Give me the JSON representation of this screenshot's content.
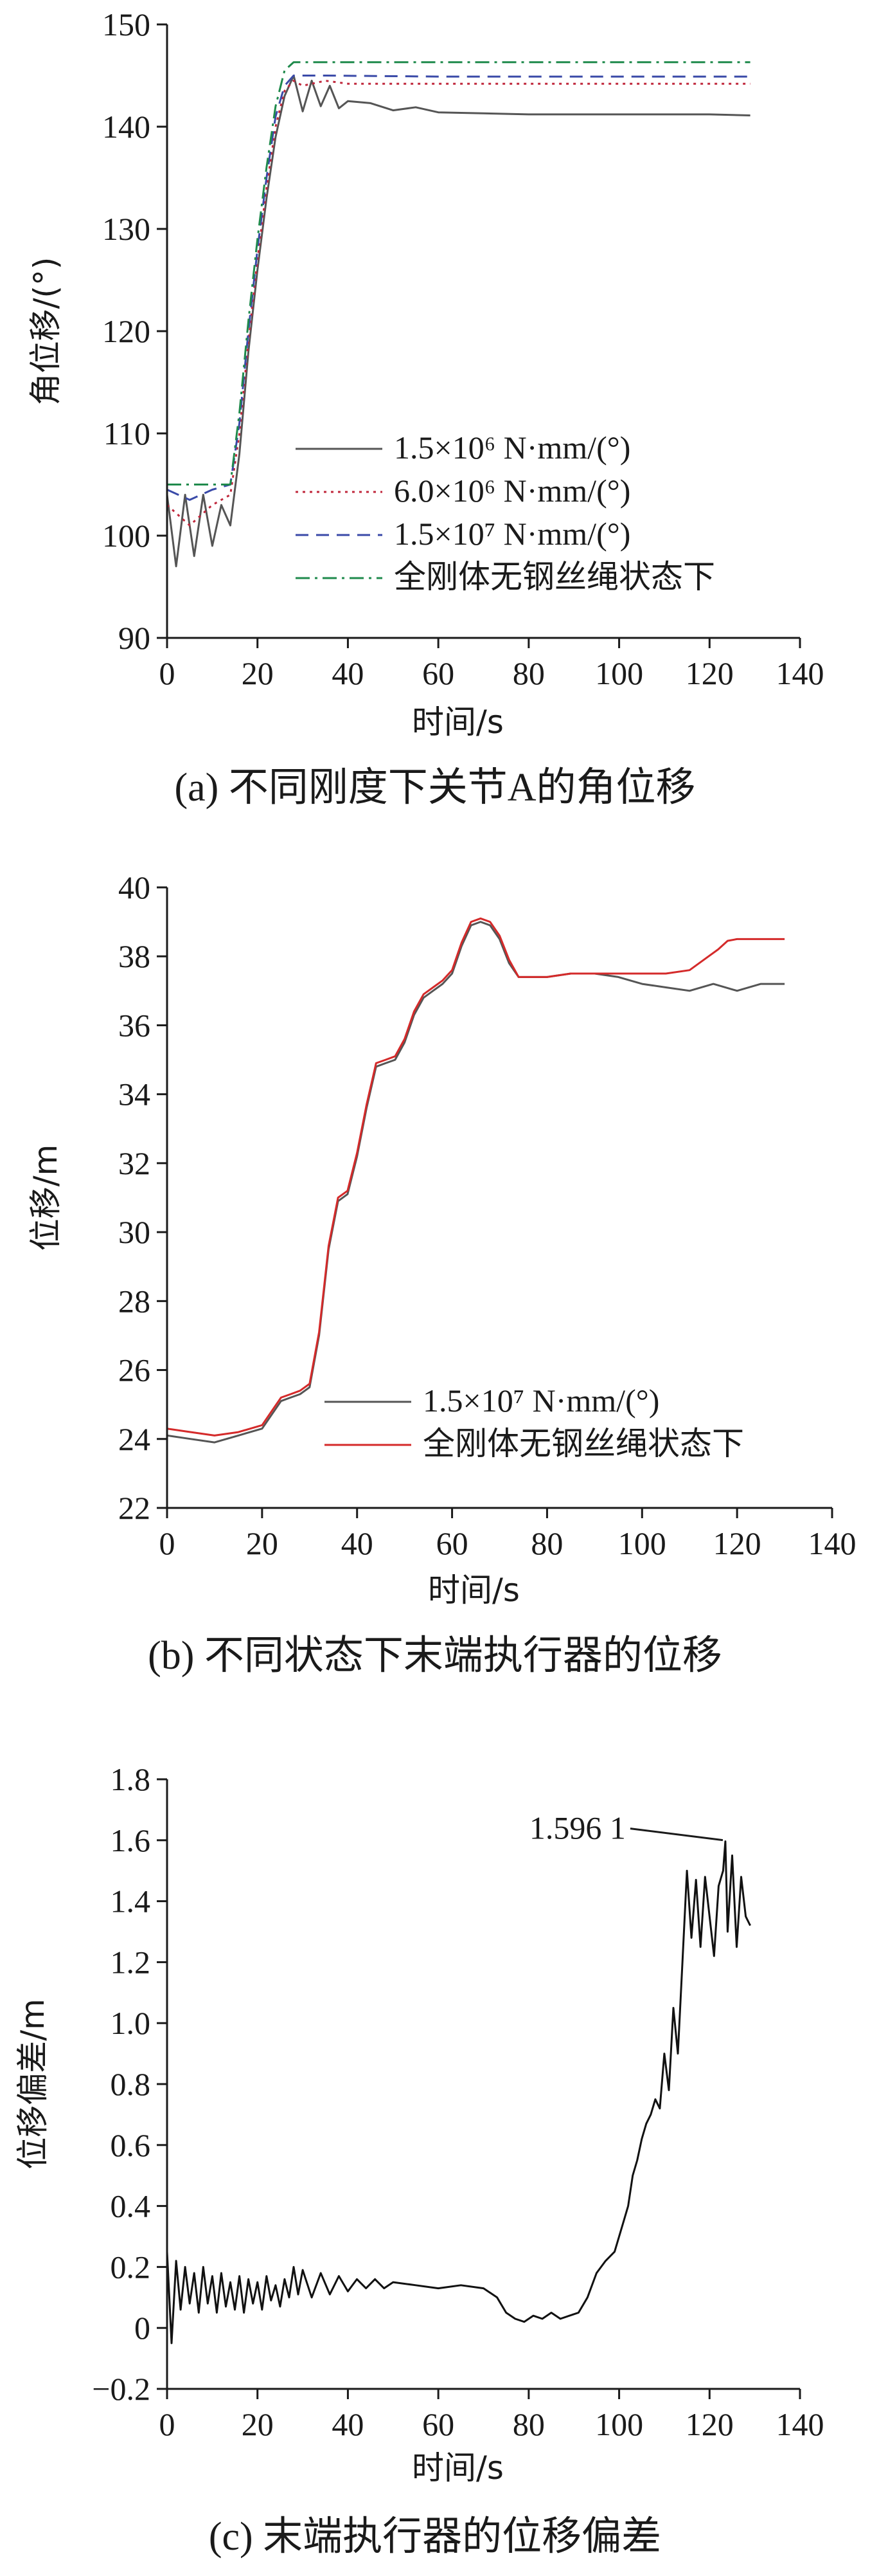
{
  "chart_data": [
    {
      "type": "line",
      "caption": "(a)  不同刚度下关节A的角位移",
      "xlabel": "时间/s",
      "ylabel": "角位移/(°)",
      "xlim": [
        0,
        140
      ],
      "ylim": [
        90,
        150
      ],
      "xticks": [
        "0",
        "20",
        "40",
        "60",
        "80",
        "100",
        "120",
        "140"
      ],
      "yticks": [
        "90",
        "100",
        "110",
        "120",
        "130",
        "140",
        "150"
      ],
      "legend_position": "lower-right",
      "series": [
        {
          "name": "1.5×10⁶ N·mm/(°)",
          "color": "#555555",
          "style": "solid",
          "x": [
            0,
            2,
            4,
            6,
            8,
            10,
            12,
            14,
            16,
            18,
            20,
            22,
            24,
            26,
            28,
            30,
            32,
            34,
            36,
            38,
            40,
            45,
            50,
            55,
            60,
            70,
            80,
            90,
            100,
            110,
            120,
            129
          ],
          "y": [
            104,
            97,
            104,
            98,
            104,
            99,
            103,
            101,
            108,
            118,
            126,
            133,
            139,
            143,
            145,
            141.5,
            144.5,
            142,
            144,
            141.8,
            142.5,
            142.3,
            141.6,
            141.9,
            141.4,
            141.3,
            141.2,
            141.2,
            141.2,
            141.2,
            141.2,
            141.1
          ]
        },
        {
          "name": "6.0×10⁶ N·mm/(°)",
          "color": "#c0283c",
          "style": "dotted",
          "x": [
            0,
            5,
            10,
            14,
            16,
            18,
            20,
            22,
            24,
            26,
            28,
            30,
            35,
            40,
            60,
            80,
            100,
            129
          ],
          "y": [
            103,
            101,
            103,
            104,
            110,
            119,
            127,
            134,
            140,
            143.5,
            144.5,
            144,
            144.5,
            144.2,
            144.2,
            144.2,
            144.2,
            144.2
          ]
        },
        {
          "name": "1.5×10⁷ N·mm/(°)",
          "color": "#3a4aa8",
          "style": "dashed",
          "x": [
            0,
            5,
            10,
            14,
            16,
            18,
            20,
            22,
            24,
            26,
            28,
            30,
            35,
            60,
            80,
            100,
            129
          ],
          "y": [
            104.5,
            103.5,
            104.5,
            105,
            111,
            120,
            128,
            135,
            141,
            144,
            145,
            145,
            145,
            144.9,
            144.9,
            144.9,
            144.9
          ]
        },
        {
          "name": "全刚体无钢丝绳状态下",
          "color": "#1f8a4c",
          "style": "dashdot",
          "x": [
            0,
            14,
            16,
            18,
            20,
            22,
            24,
            26,
            28,
            30,
            129
          ],
          "y": [
            105,
            105,
            112,
            121,
            129,
            136,
            142,
            145.5,
            146.3,
            146.3,
            146.3
          ]
        }
      ]
    },
    {
      "type": "line",
      "caption": "(b)  不同状态下末端执行器的位移",
      "xlabel": "时间/s",
      "ylabel": "位移/m",
      "xlim": [
        0,
        140
      ],
      "ylim": [
        22,
        40
      ],
      "xticks": [
        "0",
        "20",
        "40",
        "60",
        "80",
        "100",
        "120",
        "140"
      ],
      "yticks": [
        "22",
        "24",
        "26",
        "28",
        "30",
        "32",
        "34",
        "36",
        "38",
        "40"
      ],
      "legend_position": "lower-right",
      "series": [
        {
          "name": "1.5×10⁷ N·mm/(°)",
          "color": "#555555",
          "style": "solid",
          "x": [
            0,
            5,
            10,
            15,
            20,
            22,
            24,
            26,
            28,
            30,
            32,
            34,
            36,
            38,
            40,
            42,
            44,
            46,
            48,
            50,
            52,
            54,
            56,
            58,
            60,
            62,
            64,
            66,
            68,
            70,
            72,
            74,
            76,
            78,
            80,
            85,
            90,
            95,
            100,
            105,
            110,
            115,
            120,
            125,
            130
          ],
          "y": [
            24.1,
            24.0,
            23.9,
            24.1,
            24.3,
            24.7,
            25.1,
            25.2,
            25.3,
            25.5,
            27.0,
            29.5,
            30.9,
            31.1,
            32.2,
            33.6,
            34.8,
            34.9,
            35.0,
            35.5,
            36.3,
            36.8,
            37.0,
            37.2,
            37.5,
            38.3,
            38.9,
            39.0,
            38.9,
            38.5,
            37.8,
            37.4,
            37.4,
            37.4,
            37.4,
            37.5,
            37.5,
            37.4,
            37.2,
            37.1,
            37.0,
            37.2,
            37.0,
            37.2,
            37.2
          ]
        },
        {
          "name": "全刚体无钢丝绳状态下",
          "color": "#d42a2a",
          "style": "solid",
          "x": [
            0,
            5,
            10,
            15,
            20,
            22,
            24,
            26,
            28,
            30,
            32,
            34,
            36,
            38,
            40,
            42,
            44,
            46,
            48,
            50,
            52,
            54,
            56,
            58,
            60,
            62,
            64,
            66,
            68,
            70,
            72,
            74,
            76,
            78,
            80,
            85,
            90,
            95,
            100,
            105,
            110,
            112,
            114,
            116,
            118,
            120,
            125,
            130
          ],
          "y": [
            24.3,
            24.2,
            24.1,
            24.2,
            24.4,
            24.8,
            25.2,
            25.3,
            25.4,
            25.6,
            27.1,
            29.6,
            31.0,
            31.2,
            32.3,
            33.7,
            34.9,
            35.0,
            35.1,
            35.6,
            36.4,
            36.9,
            37.1,
            37.3,
            37.6,
            38.4,
            39.0,
            39.1,
            39.0,
            38.6,
            37.9,
            37.4,
            37.4,
            37.4,
            37.4,
            37.5,
            37.5,
            37.5,
            37.5,
            37.5,
            37.6,
            37.8,
            38.0,
            38.2,
            38.45,
            38.5,
            38.5,
            38.5
          ]
        }
      ]
    },
    {
      "type": "line",
      "caption": "(c)  末端执行器的位移偏差",
      "xlabel": "时间/s",
      "ylabel": "位移偏差/m",
      "xlim": [
        0,
        140
      ],
      "ylim": [
        -0.2,
        1.8
      ],
      "xticks": [
        "0",
        "20",
        "40",
        "60",
        "80",
        "100",
        "120",
        "140"
      ],
      "yticks": [
        "−0.2",
        "0",
        "0.2",
        "0.4",
        "0.6",
        "0.8",
        "1.0",
        "1.2",
        "1.4",
        "1.6",
        "1.8"
      ],
      "annotation": {
        "text": "1.596 1",
        "x": 123.5,
        "y": 1.5961
      },
      "series": [
        {
          "name": "",
          "color": "#111111",
          "style": "solid",
          "x": [
            0,
            1,
            2,
            3,
            4,
            5,
            6,
            7,
            8,
            9,
            10,
            11,
            12,
            13,
            14,
            15,
            16,
            17,
            18,
            19,
            20,
            21,
            22,
            23,
            24,
            25,
            26,
            27,
            28,
            29,
            30,
            32,
            34,
            36,
            38,
            40,
            42,
            44,
            46,
            48,
            50,
            55,
            60,
            65,
            70,
            73,
            75,
            77,
            79,
            81,
            83,
            85,
            87,
            89,
            91,
            93,
            95,
            97,
            99,
            101,
            102,
            103,
            104,
            105,
            106,
            107,
            108,
            109,
            110,
            111,
            112,
            113,
            114,
            115,
            116,
            117,
            118,
            119,
            120,
            121,
            122,
            123,
            123.5,
            124,
            125,
            126,
            127,
            128,
            129
          ],
          "y": [
            0.25,
            -0.05,
            0.22,
            0.06,
            0.2,
            0.08,
            0.18,
            0.05,
            0.2,
            0.08,
            0.17,
            0.05,
            0.18,
            0.07,
            0.15,
            0.06,
            0.17,
            0.05,
            0.16,
            0.08,
            0.15,
            0.06,
            0.17,
            0.09,
            0.14,
            0.07,
            0.16,
            0.1,
            0.2,
            0.11,
            0.19,
            0.1,
            0.18,
            0.11,
            0.17,
            0.12,
            0.16,
            0.13,
            0.16,
            0.13,
            0.15,
            0.14,
            0.13,
            0.14,
            0.13,
            0.1,
            0.05,
            0.03,
            0.02,
            0.04,
            0.03,
            0.05,
            0.03,
            0.04,
            0.05,
            0.1,
            0.18,
            0.22,
            0.25,
            0.35,
            0.4,
            0.5,
            0.55,
            0.62,
            0.67,
            0.7,
            0.75,
            0.72,
            0.9,
            0.78,
            1.05,
            0.9,
            1.2,
            1.5,
            1.28,
            1.47,
            1.25,
            1.48,
            1.35,
            1.22,
            1.45,
            1.5,
            1.5961,
            1.3,
            1.55,
            1.25,
            1.48,
            1.35,
            1.32
          ]
        }
      ]
    }
  ]
}
